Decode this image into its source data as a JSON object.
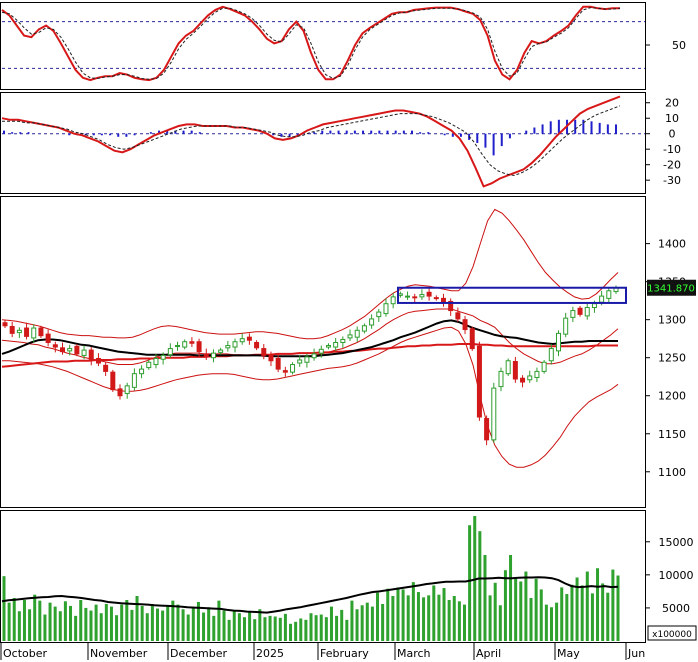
{
  "colors": {
    "panel_border": "#000000",
    "grid_dash": "#2a2aa0",
    "indicator_red": "#d81818",
    "indicator_signal": "#202020",
    "hist_blue": "#1f1fcc",
    "candle_up": "#2f9e2f",
    "candle_down": "#d11919",
    "bollinger": "#cc1111",
    "ma_black": "#000000",
    "ma_red": "#d81818",
    "volume_green": "#2ea12e",
    "volume_ma": "#000000",
    "resistance_box": "#1a1aa8",
    "price_tag_bg": "#111111",
    "price_tag_text": "#33ff33"
  },
  "chart_data": [
    {
      "panel": "stochastic",
      "type": "line",
      "y_ticks": [
        "50"
      ],
      "reference_lines": [
        80,
        20
      ],
      "series": [
        {
          "color": "red",
          "values": [
            95,
            88,
            75,
            62,
            60,
            70,
            75,
            68,
            52,
            35,
            18,
            8,
            5,
            8,
            10,
            10,
            14,
            12,
            8,
            6,
            5,
            8,
            18,
            35,
            52,
            62,
            68,
            78,
            88,
            95,
            99,
            96,
            92,
            88,
            80,
            70,
            58,
            52,
            55,
            70,
            80,
            68,
            40,
            18,
            6,
            6,
            12,
            30,
            50,
            65,
            72,
            78,
            84,
            90,
            92,
            92,
            95,
            96,
            97,
            98,
            98,
            98,
            96,
            93,
            90,
            82,
            62,
            30,
            12,
            6,
            18,
            40,
            55,
            52,
            55,
            62,
            68,
            75,
            88,
            99,
            99,
            97,
            96,
            97,
            97
          ]
        },
        {
          "color": "black-dashed",
          "values": [
            92,
            90,
            82,
            72,
            64,
            66,
            72,
            70,
            60,
            45,
            28,
            14,
            8,
            7,
            9,
            10,
            12,
            12,
            10,
            7,
            6,
            7,
            14,
            28,
            45,
            57,
            65,
            74,
            84,
            92,
            97,
            97,
            94,
            90,
            84,
            75,
            64,
            56,
            54,
            64,
            76,
            72,
            52,
            28,
            12,
            7,
            10,
            24,
            44,
            60,
            70,
            76,
            82,
            88,
            91,
            92,
            94,
            95,
            96,
            97,
            97,
            97,
            96,
            94,
            91,
            86,
            70,
            42,
            20,
            10,
            14,
            32,
            48,
            52,
            54,
            60,
            65,
            72,
            84,
            95,
            98,
            97,
            96,
            96,
            97
          ]
        }
      ]
    },
    {
      "panel": "macd",
      "type": "line",
      "y_ticks": [
        "20",
        "10",
        "0",
        "-10",
        "-20",
        "-30"
      ],
      "ylim": [
        -37,
        25
      ],
      "series": [
        {
          "color": "red",
          "values": [
            10,
            9,
            9,
            8,
            7,
            6,
            5,
            4,
            2,
            0,
            -1,
            -3,
            -5,
            -8,
            -11,
            -12,
            -10,
            -7,
            -4,
            -1,
            1,
            3,
            5,
            6,
            6,
            5,
            5,
            5,
            5,
            4,
            4,
            3,
            2,
            0,
            -3,
            -4,
            -3,
            -1,
            2,
            4,
            6,
            7,
            8,
            9,
            10,
            11,
            12,
            13,
            14,
            15,
            15,
            14,
            13,
            11,
            8,
            5,
            2,
            -3,
            -11,
            -22,
            -34,
            -32,
            -29,
            -27,
            -25,
            -23,
            -19,
            -14,
            -8,
            -2,
            3,
            8,
            13,
            16,
            18,
            20,
            22,
            24
          ]
        },
        {
          "color": "black-dashed",
          "values": [
            8,
            8,
            8,
            7,
            7,
            6,
            5,
            4,
            3,
            1,
            0,
            -2,
            -4,
            -7,
            -9,
            -10,
            -9,
            -7,
            -5,
            -3,
            -1,
            1,
            3,
            4,
            5,
            5,
            5,
            5,
            5,
            4,
            4,
            3,
            2,
            1,
            -1,
            -2,
            -2,
            -1,
            1,
            2,
            4,
            5,
            6,
            7,
            8,
            9,
            10,
            11,
            12,
            13,
            13,
            13,
            12,
            11,
            9,
            7,
            4,
            1,
            -5,
            -13,
            -20,
            -24,
            -26,
            -27,
            -25,
            -22,
            -18,
            -13,
            -8,
            -3,
            1,
            5,
            9,
            12,
            14,
            16,
            18
          ]
        }
      ],
      "histogram": [
        2,
        1,
        1,
        1,
        0,
        0,
        0,
        0,
        -1,
        -1,
        -1,
        -1,
        -1,
        -1,
        -2,
        -2,
        -1,
        0,
        1,
        2,
        2,
        2,
        2,
        2,
        1,
        0,
        0,
        0,
        0,
        0,
        0,
        0,
        0,
        -1,
        -2,
        -2,
        -1,
        0,
        1,
        2,
        2,
        2,
        2,
        2,
        2,
        2,
        2,
        2,
        2,
        2,
        2,
        1,
        1,
        0,
        -1,
        -2,
        -2,
        -4,
        -6,
        -9,
        -14,
        -8,
        -3,
        0,
        2,
        4,
        6,
        8,
        9,
        9,
        9,
        9,
        8,
        7,
        6,
        6
      ]
    },
    {
      "panel": "price",
      "type": "candlestick",
      "y_ticks": [
        "1400",
        "1350",
        "1300",
        "1250",
        "1200",
        "1150",
        "1100"
      ],
      "ylim": [
        1055,
        1460
      ],
      "last_price_tag": "1341.870",
      "x_labels": [
        "October",
        "November",
        "December",
        "2025",
        "February",
        "March",
        "April",
        "May",
        "Jun"
      ],
      "closes": [
        1292,
        1282,
        1286,
        1278,
        1289,
        1279,
        1270,
        1264,
        1258,
        1262,
        1255,
        1260,
        1247,
        1243,
        1232,
        1208,
        1200,
        1213,
        1229,
        1235,
        1244,
        1249,
        1253,
        1262,
        1266,
        1271,
        1269,
        1258,
        1251,
        1256,
        1260,
        1266,
        1271,
        1275,
        1273,
        1263,
        1253,
        1246,
        1235,
        1231,
        1241,
        1247,
        1251,
        1255,
        1261,
        1266,
        1270,
        1274,
        1280,
        1286,
        1292,
        1301,
        1310,
        1321,
        1330,
        1334,
        1331,
        1329,
        1333,
        1331,
        1328,
        1322,
        1312,
        1301,
        1287,
        1262,
        1172,
        1142,
        1210,
        1232,
        1246,
        1222,
        1218,
        1226,
        1232,
        1244,
        1262,
        1282,
        1302,
        1312,
        1307,
        1316,
        1321,
        1331,
        1338,
        1342
      ],
      "resistance_zone": [
        1322,
        1342
      ],
      "ma_black": [
        1255,
        1258,
        1262,
        1266,
        1270,
        1273,
        1274,
        1274,
        1273,
        1271,
        1269,
        1267,
        1266,
        1264,
        1262,
        1260,
        1258,
        1257,
        1256,
        1255,
        1254,
        1254,
        1254,
        1254,
        1254,
        1254,
        1254,
        1253,
        1253,
        1253,
        1253,
        1253,
        1253,
        1253,
        1253,
        1253,
        1253,
        1252,
        1252,
        1252,
        1252,
        1252,
        1252,
        1252,
        1253,
        1254,
        1255,
        1256,
        1258,
        1260,
        1262,
        1264,
        1267,
        1270,
        1273,
        1277,
        1280,
        1283,
        1287,
        1291,
        1295,
        1298,
        1299,
        1297,
        1293,
        1289,
        1286,
        1283,
        1280,
        1278,
        1277,
        1276,
        1274,
        1272,
        1270,
        1269,
        1268,
        1269,
        1270,
        1271,
        1271,
        1272,
        1272,
        1272,
        1272,
        1272
      ],
      "ma_red": [
        1238,
        1239,
        1240,
        1241,
        1242,
        1243,
        1244,
        1245,
        1245,
        1245,
        1246,
        1246,
        1246,
        1247,
        1247,
        1247,
        1248,
        1248,
        1248,
        1249,
        1249,
        1249,
        1250,
        1250,
        1250,
        1250,
        1251,
        1251,
        1251,
        1252,
        1252,
        1252,
        1253,
        1253,
        1253,
        1254,
        1254,
        1254,
        1255,
        1255,
        1255,
        1256,
        1256,
        1256,
        1257,
        1257,
        1258,
        1258,
        1259,
        1259,
        1260,
        1261,
        1262,
        1262,
        1263,
        1264,
        1265,
        1265,
        1266,
        1266,
        1267,
        1267,
        1267,
        1268,
        1268,
        1268,
        1267,
        1267,
        1266,
        1266,
        1265,
        1265,
        1265,
        1265,
        1265,
        1265,
        1265,
        1265,
        1265,
        1265,
        1265,
        1265,
        1266,
        1266,
        1266,
        1266
      ],
      "bb_upper": [
        1300,
        1299,
        1298,
        1296,
        1294,
        1292,
        1289,
        1286,
        1283,
        1281,
        1280,
        1279,
        1279,
        1278,
        1277,
        1277,
        1276,
        1276,
        1277,
        1280,
        1284,
        1288,
        1291,
        1292,
        1291,
        1289,
        1287,
        1285,
        1283,
        1282,
        1281,
        1281,
        1281,
        1282,
        1283,
        1284,
        1284,
        1283,
        1282,
        1280,
        1278,
        1276,
        1275,
        1275,
        1276,
        1279,
        1283,
        1287,
        1292,
        1298,
        1304,
        1312,
        1320,
        1328,
        1335,
        1340,
        1344,
        1346,
        1345,
        1344,
        1342,
        1340,
        1338,
        1338,
        1348,
        1370,
        1400,
        1430,
        1445,
        1440,
        1430,
        1418,
        1405,
        1390,
        1375,
        1362,
        1352,
        1343,
        1336,
        1330,
        1327,
        1328,
        1334,
        1343,
        1353,
        1362
      ],
      "bb_lower": [
        1246,
        1246,
        1245,
        1244,
        1243,
        1242,
        1240,
        1238,
        1235,
        1232,
        1228,
        1224,
        1220,
        1216,
        1212,
        1209,
        1207,
        1206,
        1206,
        1207,
        1209,
        1212,
        1215,
        1218,
        1221,
        1223,
        1225,
        1227,
        1228,
        1229,
        1229,
        1229,
        1228,
        1226,
        1224,
        1222,
        1221,
        1221,
        1222,
        1224,
        1226,
        1228,
        1230,
        1232,
        1234,
        1236,
        1237,
        1238,
        1240,
        1243,
        1247,
        1251,
        1255,
        1260,
        1265,
        1270,
        1274,
        1277,
        1280,
        1283,
        1286,
        1289,
        1290,
        1285,
        1268,
        1240,
        1198,
        1160,
        1135,
        1120,
        1110,
        1106,
        1106,
        1109,
        1114,
        1122,
        1133,
        1145,
        1160,
        1173,
        1183,
        1192,
        1198,
        1203,
        1208,
        1215
      ],
      "bb_middle": [
        1273,
        1272,
        1271,
        1270,
        1268,
        1267,
        1264,
        1262,
        1259,
        1256,
        1254,
        1251,
        1249,
        1247,
        1245,
        1243,
        1241,
        1241,
        1241,
        1243,
        1246,
        1250,
        1253,
        1255,
        1256,
        1256,
        1256,
        1256,
        1255,
        1255,
        1255,
        1255,
        1254,
        1254,
        1253,
        1253,
        1252,
        1252,
        1252,
        1252,
        1252,
        1252,
        1252,
        1253,
        1255,
        1257,
        1260,
        1262,
        1266,
        1270,
        1275,
        1281,
        1287,
        1294,
        1300,
        1305,
        1309,
        1311,
        1312,
        1313,
        1314,
        1314,
        1314,
        1311,
        1308,
        1305,
        1299,
        1295,
        1290,
        1280,
        1270,
        1262,
        1255,
        1250,
        1245,
        1242,
        1242,
        1244,
        1248,
        1252,
        1255,
        1260,
        1266,
        1273,
        1280,
        1288
      ]
    },
    {
      "panel": "volume",
      "type": "bar",
      "y_ticks": [
        "15000",
        "10000",
        "5000"
      ],
      "ylim": [
        0,
        19500
      ],
      "scale_note": "x100000",
      "values": [
        9800,
        5800,
        6500,
        4500,
        6200,
        4800,
        7000,
        6100,
        4000,
        5800,
        5200,
        4500,
        6000,
        5300,
        3800,
        6200,
        5000,
        4600,
        5500,
        4200,
        5600,
        5200,
        3900,
        5500,
        6200,
        4700,
        6800,
        5300,
        4200,
        5600,
        4900,
        4600,
        5200,
        6100,
        5500,
        4800,
        4000,
        5200,
        5900,
        4300,
        5100,
        3800,
        6100,
        4600,
        3200,
        4700,
        4200,
        3600,
        4400,
        3300,
        4800,
        3600,
        3800,
        3700,
        3500,
        4100,
        2600,
        2900,
        3400,
        3200,
        4200,
        3900,
        4000,
        3600,
        5200,
        3800,
        4700,
        3200,
        6100,
        4800,
        5400,
        5800,
        5200,
        7300,
        5600,
        7900,
        6800,
        8100,
        7800,
        6900,
        8900,
        7400,
        6600,
        6900,
        8400,
        7000,
        8000,
        6200,
        6800,
        6000,
        5500,
        17500,
        18900,
        16600,
        13000,
        6900,
        8800,
        5400,
        10700,
        13000,
        9600,
        9000,
        10500,
        6500,
        9400,
        7800,
        5500,
        5100,
        5800,
        8100,
        7100,
        8500,
        9600,
        8400,
        10500,
        7200,
        11000,
        8700,
        7300,
        10800,
        9900
      ],
      "ma_values": [
        6000,
        6150,
        6250,
        6350,
        6450,
        6550,
        6600,
        6650,
        6750,
        6800,
        6700,
        6600,
        6500,
        6350,
        6200,
        6100,
        5900,
        5800,
        5700,
        5650,
        5600,
        5550,
        5500,
        5400,
        5350,
        5300,
        5250,
        5200,
        5100,
        5050,
        5000,
        4950,
        4900,
        4850,
        4700,
        4600,
        4550,
        4450,
        4400,
        4350,
        4300,
        4450,
        4600,
        4800,
        4950,
        5100,
        5300,
        5500,
        5700,
        5900,
        6100,
        6300,
        6500,
        6750,
        7000,
        7200,
        7400,
        7500,
        7650,
        7800,
        7950,
        8100,
        8250,
        8400,
        8600,
        8700,
        8850,
        8950,
        8950,
        9000,
        9000,
        9200,
        9450,
        9450,
        9500,
        9550,
        9500,
        9500,
        9550,
        9600,
        9600,
        9650,
        9600,
        9500,
        9200,
        8700,
        8300,
        8150,
        8200,
        8300,
        8200,
        8300,
        8150,
        8200
      ]
    }
  ]
}
